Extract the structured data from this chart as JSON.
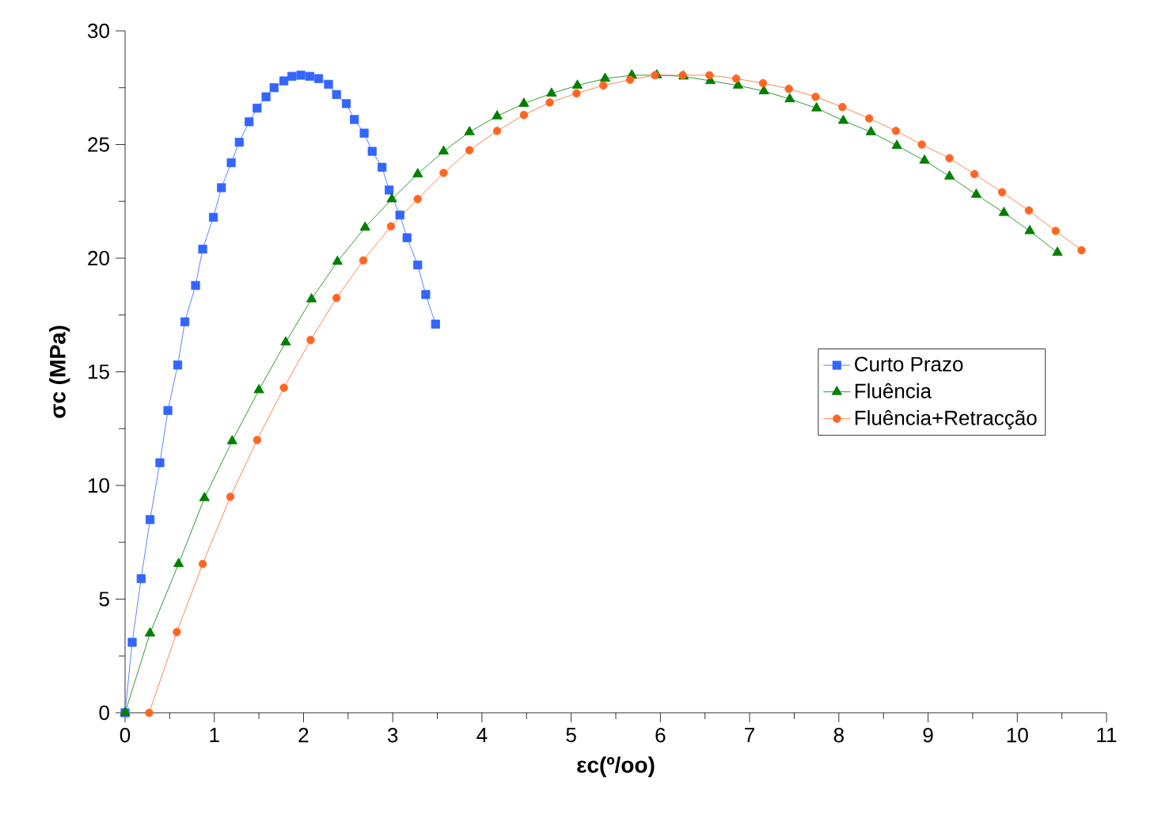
{
  "chart_data": {
    "type": "line",
    "xlabel": "εc(º/oo)",
    "ylabel": "σc (MPa)",
    "xlim": [
      0,
      11
    ],
    "ylim": [
      0,
      30
    ],
    "xticks": [
      0,
      1,
      2,
      3,
      4,
      5,
      6,
      7,
      8,
      9,
      10,
      11
    ],
    "yticks": [
      0,
      5,
      10,
      15,
      20,
      25,
      30
    ],
    "grid": false,
    "legend": "right",
    "series": [
      {
        "name": "Curto Prazo",
        "color": "#3366ff",
        "marker": "square",
        "x": [
          0,
          0.08,
          0.18,
          0.28,
          0.39,
          0.48,
          0.59,
          0.67,
          0.79,
          0.87,
          0.99,
          1.08,
          1.19,
          1.28,
          1.39,
          1.48,
          1.58,
          1.67,
          1.78,
          1.87,
          1.97,
          2.07,
          2.17,
          2.28,
          2.37,
          2.48,
          2.57,
          2.68,
          2.77,
          2.88,
          2.96,
          3.08,
          3.16,
          3.28,
          3.37,
          3.48
        ],
        "values": [
          0,
          3.1,
          5.9,
          8.5,
          11.0,
          13.3,
          15.3,
          17.2,
          18.8,
          20.4,
          21.8,
          23.1,
          24.2,
          25.1,
          26.0,
          26.6,
          27.1,
          27.5,
          27.8,
          28.0,
          28.05,
          28.0,
          27.9,
          27.65,
          27.2,
          26.8,
          26.1,
          25.5,
          24.7,
          24.0,
          23.0,
          21.9,
          20.9,
          19.7,
          18.4,
          17.1
        ]
      },
      {
        "name": "Fluência",
        "color": "#007f00",
        "marker": "triangle",
        "x": [
          0,
          0.28,
          0.6,
          0.89,
          1.2,
          1.5,
          1.8,
          2.09,
          2.38,
          2.69,
          2.99,
          3.28,
          3.57,
          3.86,
          4.17,
          4.47,
          4.78,
          5.07,
          5.38,
          5.68,
          5.96,
          6.26,
          6.56,
          6.87,
          7.16,
          7.45,
          7.75,
          8.05,
          8.36,
          8.65,
          8.96,
          9.24,
          9.54,
          9.85,
          10.14,
          10.45
        ],
        "values": [
          0,
          3.5,
          6.55,
          9.45,
          11.95,
          14.2,
          16.3,
          18.2,
          19.85,
          21.35,
          22.6,
          23.7,
          24.7,
          25.55,
          26.25,
          26.8,
          27.25,
          27.6,
          27.9,
          28.05,
          28.05,
          28.0,
          27.8,
          27.6,
          27.35,
          27.0,
          26.6,
          26.05,
          25.55,
          24.95,
          24.3,
          23.6,
          22.8,
          22.0,
          21.2,
          20.25
        ]
      },
      {
        "name": "Fluência+Retracção",
        "color": "#ff6622",
        "marker": "circle",
        "x": [
          0.27,
          0.58,
          0.87,
          1.18,
          1.48,
          1.78,
          2.08,
          2.37,
          2.67,
          2.98,
          3.28,
          3.57,
          3.86,
          4.17,
          4.47,
          4.76,
          5.06,
          5.36,
          5.66,
          5.94,
          6.25,
          6.55,
          6.85,
          7.15,
          7.44,
          7.74,
          8.04,
          8.34,
          8.64,
          8.93,
          9.24,
          9.52,
          9.83,
          10.13,
          10.43,
          10.72
        ],
        "values": [
          0,
          3.55,
          6.55,
          9.5,
          12.0,
          14.3,
          16.4,
          18.25,
          19.9,
          21.4,
          22.6,
          23.75,
          24.75,
          25.6,
          26.3,
          26.85,
          27.25,
          27.6,
          27.85,
          28.05,
          28.05,
          28.05,
          27.9,
          27.7,
          27.45,
          27.1,
          26.65,
          26.15,
          25.6,
          25.0,
          24.4,
          23.7,
          22.9,
          22.1,
          21.2,
          20.35
        ]
      }
    ]
  }
}
